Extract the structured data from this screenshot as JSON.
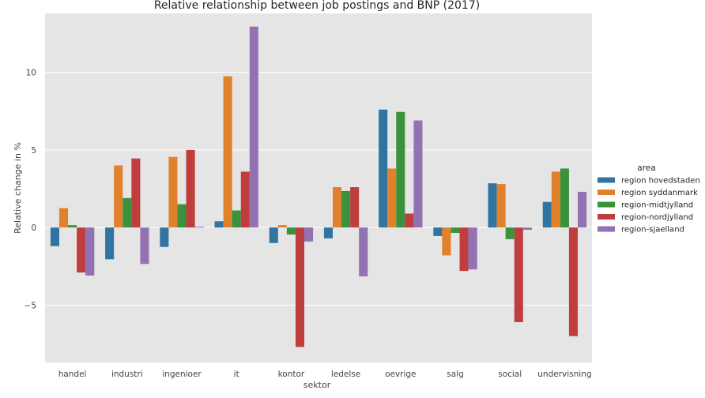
{
  "chart_data": {
    "type": "bar",
    "title": "Relative relationship between job postings and BNP (2017)",
    "xlabel": "sektor",
    "ylabel": "Relative change in %",
    "categories": [
      "handel",
      "industri",
      "ingenioer",
      "it",
      "kontor",
      "ledelse",
      "oevrige",
      "salg",
      "social",
      "undervisning"
    ],
    "yticks": [
      -5,
      0,
      5,
      10
    ],
    "ytick_labels": [
      "−5",
      "0",
      "5",
      "10"
    ],
    "ylim": [
      -8.7,
      13.8
    ],
    "grid": true,
    "legend": {
      "title": "area",
      "placement": "right"
    },
    "series": [
      {
        "name": "region hovedstaden",
        "color": "#3274a1",
        "values": [
          -1.2,
          -2.05,
          -1.25,
          0.4,
          -1.0,
          -0.7,
          7.6,
          -0.55,
          2.85,
          1.65
        ]
      },
      {
        "name": "region syddanmark",
        "color": "#e1812c",
        "values": [
          1.25,
          4.0,
          4.55,
          9.75,
          0.15,
          2.6,
          3.8,
          -1.8,
          2.8,
          3.6
        ]
      },
      {
        "name": "region-midtjylland",
        "color": "#3a923a",
        "values": [
          0.15,
          1.9,
          1.5,
          1.1,
          -0.45,
          2.35,
          7.45,
          -0.35,
          -0.75,
          3.8
        ]
      },
      {
        "name": "region-nordjylland",
        "color": "#c03d3e",
        "values": [
          -2.9,
          4.45,
          5.0,
          3.6,
          -7.7,
          2.6,
          0.9,
          -2.8,
          -6.1,
          -7.0
        ]
      },
      {
        "name": "region-sjaelland",
        "color": "#9372b2",
        "values": [
          -3.1,
          -2.35,
          0.05,
          12.95,
          -0.9,
          -3.15,
          6.9,
          -2.7,
          -0.15,
          2.3
        ]
      }
    ]
  }
}
